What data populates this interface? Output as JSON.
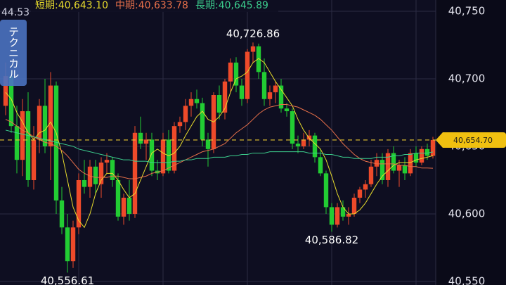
{
  "chart_data": {
    "type": "candlestick",
    "top_left_text": "44.53",
    "indicator_button": "テクニカル",
    "legend_separator": ":",
    "up_color": "#ee4a2a",
    "down_color": "#22cc33",
    "grid": true,
    "ylim": [
      40547.4,
      40758.3
    ],
    "yticks": [
      {
        "value": 40550,
        "label": "40,550"
      },
      {
        "value": 40600,
        "label": "40,600"
      },
      {
        "value": 40650,
        "label": "40,650"
      },
      {
        "value": 40700,
        "label": "40,700"
      },
      {
        "value": 40750,
        "label": "40,750"
      }
    ],
    "open": [
      40680,
      40702,
      40665,
      40640,
      40676,
      40625,
      40655,
      40680,
      40650,
      40695,
      40610,
      40590,
      40565,
      40590,
      40625,
      40620,
      40635,
      40622,
      40638,
      40640,
      40625,
      40598,
      40612,
      40600,
      40660,
      40652,
      40655,
      40632,
      40630,
      40655,
      40632,
      40665,
      40668,
      40680,
      40685,
      40682,
      40655,
      40648,
      40688,
      40675,
      40698,
      40712,
      40695,
      40685,
      40720,
      40724,
      40705,
      40685,
      40690,
      40695,
      40678,
      40676,
      40652,
      40650,
      40655,
      40658,
      40642,
      40630,
      40605,
      40592,
      40605,
      40598,
      40600,
      40612,
      40618,
      40622,
      40635,
      40640,
      40625,
      40645,
      40632,
      40636,
      40630,
      40645,
      40638,
      40648,
      40643
    ],
    "high": [
      40712,
      40706,
      40680,
      40685,
      40690,
      40665,
      40685,
      40700,
      40705,
      40698,
      40620,
      40600,
      40595,
      40630,
      40640,
      40640,
      40640,
      40642,
      40645,
      40642,
      40630,
      40615,
      40625,
      40665,
      40672,
      40660,
      40660,
      40640,
      40660,
      40662,
      40668,
      40672,
      40685,
      40690,
      40692,
      40686,
      40660,
      40690,
      40695,
      40700,
      40715,
      40716,
      40700,
      40722,
      40726.86,
      40726,
      40715,
      40695,
      40698,
      40700,
      40682,
      40678,
      40658,
      40660,
      40662,
      40660,
      40648,
      40632,
      40608,
      40608,
      40610,
      40605,
      40615,
      40620,
      40625,
      40640,
      40645,
      40645,
      40648,
      40650,
      40640,
      40642,
      40648,
      40650,
      40650,
      40652,
      40657
    ],
    "low": [
      40673,
      40660,
      40630,
      40628,
      40620,
      40618,
      40645,
      40645,
      40625,
      40600,
      40585,
      40556.61,
      40560,
      40585,
      40615,
      40612,
      40615,
      40612,
      40630,
      40620,
      40595,
      40592,
      40595,
      40597,
      40648,
      40640,
      40628,
      40625,
      40628,
      40630,
      40630,
      40660,
      40662,
      40672,
      40678,
      40650,
      40635,
      40645,
      40670,
      40670,
      40690,
      40690,
      40680,
      40682,
      40712,
      40700,
      40680,
      40680,
      40682,
      40675,
      40672,
      40648,
      40645,
      40648,
      40650,
      40638,
      40628,
      40600,
      40586.82,
      40590,
      40595,
      40592,
      40598,
      40608,
      40612,
      40620,
      40628,
      40622,
      40620,
      40630,
      40620,
      40625,
      40628,
      40635,
      40636,
      40640,
      40641
    ],
    "close": [
      40702,
      40665,
      40640,
      40676,
      40625,
      40655,
      40680,
      40650,
      40695,
      40610,
      40590,
      40565,
      40590,
      40625,
      40620,
      40635,
      40622,
      40638,
      40640,
      40625,
      40598,
      40612,
      40600,
      40660,
      40652,
      40655,
      40632,
      40630,
      40655,
      40632,
      40665,
      40668,
      40680,
      40685,
      40682,
      40655,
      40648,
      40688,
      40675,
      40698,
      40712,
      40695,
      40685,
      40720,
      40724,
      40705,
      40685,
      40690,
      40695,
      40678,
      40676,
      40652,
      40650,
      40655,
      40658,
      40642,
      40630,
      40605,
      40592,
      40605,
      40598,
      40600,
      40612,
      40618,
      40622,
      40635,
      40640,
      40625,
      40645,
      40632,
      40636,
      40630,
      40645,
      40638,
      40648,
      40643,
      40654.7
    ],
    "series": [
      {
        "name": "短期",
        "color": "#e8dc2c",
        "value_label": "40,643.10",
        "last": 40643.1,
        "values": [
          40690,
          40685,
          40675,
          40668,
          40660,
          40655,
          40660,
          40662,
          40668,
          40660,
          40645,
          40625,
          40605,
          40595,
          40590,
          40600,
          40615,
          40625,
          40630,
          40630,
          40625,
          40618,
          40612,
          40615,
          40625,
          40635,
          40645,
          40648,
          40645,
          40643,
          40645,
          40650,
          40658,
          40665,
          40672,
          40676,
          40670,
          40668,
          40672,
          40678,
          40690,
          40700,
          40702,
          40705,
          40712,
          40715,
          40712,
          40705,
          40698,
          40692,
          40686,
          40680,
          40670,
          40662,
          40656,
          40652,
          40648,
          40640,
          40628,
          40615,
          40605,
          40600,
          40600,
          40603,
          40608,
          40615,
          40622,
          40628,
          40632,
          40636,
          40638,
          40638,
          40638,
          40640,
          40641,
          40642,
          40643.1
        ]
      },
      {
        "name": "中期",
        "color": "#e8704a",
        "value_label": "40,633.78",
        "last": 40633.78,
        "values": [
          40670,
          40668,
          40665,
          40662,
          40660,
          40657,
          40655,
          40653,
          40652,
          40650,
          40647,
          40643,
          40638,
          40633,
          40630,
          40628,
          40627,
          40627,
          40627,
          40628,
          40628,
          40627,
          40626,
          40626,
          40627,
          40628,
          40630,
          40631,
          40632,
          40634,
          40636,
          40638,
          40640,
          40642,
          40644,
          40646,
          40647,
          40648,
          40650,
          40652,
          40656,
          40660,
          40663,
          40666,
          40670,
          40674,
          40677,
          40679,
          40680,
          40681,
          40681,
          40680,
          40679,
          40677,
          40675,
          40673,
          40670,
          40666,
          40662,
          40657,
          40652,
          40648,
          40644,
          40641,
          40639,
          40638,
          40637,
          40637,
          40637,
          40637,
          40636,
          40636,
          40635,
          40635,
          40634,
          40634,
          40633.78
        ]
      },
      {
        "name": "長期",
        "color": "#3ccf8e",
        "value_label": "40,645.89",
        "last": 40645.89,
        "values": [
          40662,
          40661,
          40660,
          40659,
          40658,
          40657,
          40656,
          40655,
          40654,
          40653,
          40652,
          40651,
          40650,
          40648,
          40647,
          40646,
          40645,
          40644,
          40643,
          40642,
          40641,
          40640,
          40640,
          40639,
          40639,
          40639,
          40638,
          40638,
          40638,
          40638,
          40639,
          40639,
          40640,
          40640,
          40641,
          40641,
          40641,
          40642,
          40642,
          40642,
          40643,
          40643,
          40644,
          40644,
          40645,
          40645,
          40645,
          40646,
          40646,
          40646,
          40646,
          40646,
          40646,
          40646,
          40645,
          40645,
          40645,
          40644,
          40644,
          40643,
          40642,
          40642,
          40641,
          40641,
          40641,
          40641,
          40642,
          40642,
          40642,
          40643,
          40643,
          40644,
          40644,
          40645,
          40645,
          40645,
          40645.89
        ]
      }
    ],
    "annotations": [
      {
        "value": 40726.86,
        "label": "40,726.86"
      },
      {
        "value": 40556.61,
        "label": "40,556.61"
      },
      {
        "value": 40586.82,
        "label": "40,586.82"
      }
    ],
    "last_price": {
      "value": 40654.7,
      "label": "40,654.70"
    }
  }
}
